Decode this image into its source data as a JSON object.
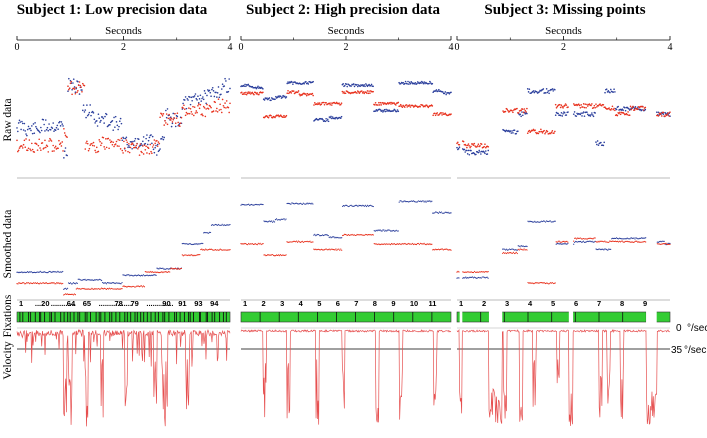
{
  "chart_data": {
    "type": "scatter",
    "shared": {
      "xlabel": "Seconds",
      "xlim": [
        0,
        4
      ],
      "x_ticks": [
        "0",
        "2",
        "4"
      ],
      "row_labels": [
        "Raw data",
        "Smoothed data",
        "Fixations",
        "Velocity"
      ],
      "velocity_reference_lines": [
        {
          "value": "0",
          "unit": "°/sec"
        },
        {
          "value": "35",
          "unit": "°/sec"
        }
      ],
      "series_colors": {
        "horizontal": "#2b3f9c",
        "vertical": "#e8321e",
        "fixation": "#33cc33",
        "velocity": "#e65050"
      }
    },
    "panels": [
      {
        "title": "Subject 1: Low precision data",
        "fixation_labels": [
          "1",
          "...20",
          "............",
          "64",
          "65",
          "................",
          "78",
          "79",
          ".............",
          "90",
          "91",
          "93",
          "94"
        ],
        "raw": {
          "horizontal": [
            [
              0.0,
              0.55
            ],
            [
              0.3,
              0.58
            ],
            [
              0.6,
              0.55
            ],
            [
              0.85,
              0.55
            ],
            [
              0.9,
              0.78
            ],
            [
              1.0,
              0.2
            ],
            [
              1.15,
              0.22
            ],
            [
              1.3,
              0.42
            ],
            [
              1.6,
              0.5
            ],
            [
              1.9,
              0.53
            ],
            [
              2.05,
              0.7
            ],
            [
              2.5,
              0.68
            ],
            [
              2.6,
              0.75
            ],
            [
              2.75,
              0.7
            ],
            [
              2.8,
              0.45
            ],
            [
              3.0,
              0.5
            ],
            [
              3.2,
              0.35
            ],
            [
              3.4,
              0.3
            ],
            [
              3.6,
              0.3
            ],
            [
              3.7,
              0.25
            ],
            [
              4.0,
              0.2
            ]
          ],
          "vertical": [
            [
              0.0,
              0.72
            ],
            [
              0.4,
              0.72
            ],
            [
              0.85,
              0.72
            ],
            [
              0.9,
              0.6
            ],
            [
              1.0,
              0.22
            ],
            [
              1.25,
              0.22
            ],
            [
              1.3,
              0.72
            ],
            [
              1.9,
              0.7
            ],
            [
              2.05,
              0.73
            ],
            [
              2.5,
              0.76
            ],
            [
              2.6,
              0.73
            ],
            [
              2.75,
              0.5
            ],
            [
              3.0,
              0.5
            ],
            [
              3.2,
              0.42
            ],
            [
              3.4,
              0.42
            ],
            [
              3.7,
              0.38
            ],
            [
              4.0,
              0.38
            ]
          ]
        },
        "smoothed": {
          "horizontal": [
            [
              0.0,
              0.75
            ],
            [
              0.85,
              0.75
            ],
            [
              0.9,
              0.9
            ],
            [
              1.0,
              0.85
            ],
            [
              1.3,
              0.82
            ],
            [
              1.9,
              0.85
            ],
            [
              2.05,
              0.78
            ],
            [
              2.5,
              0.78
            ],
            [
              2.75,
              0.72
            ],
            [
              3.0,
              0.72
            ],
            [
              3.2,
              0.5
            ],
            [
              3.4,
              0.5
            ],
            [
              3.6,
              0.4
            ],
            [
              3.7,
              0.33
            ],
            [
              4.0,
              0.33
            ]
          ],
          "vertical": [
            [
              0.0,
              0.85
            ],
            [
              0.85,
              0.85
            ],
            [
              0.9,
              0.95
            ],
            [
              1.3,
              0.9
            ],
            [
              1.9,
              0.9
            ],
            [
              2.05,
              0.88
            ],
            [
              2.75,
              0.75
            ],
            [
              3.0,
              0.72
            ],
            [
              3.2,
              0.6
            ],
            [
              3.7,
              0.55
            ],
            [
              4.0,
              0.55
            ]
          ]
        }
      },
      {
        "title": "Subject 2: High precision data",
        "fixation_labels": [
          "1",
          "2",
          "3",
          "4",
          "5",
          "6",
          "7",
          "8",
          "9",
          "10",
          "11"
        ],
        "raw": {
          "horizontal": [
            [
              0.0,
              0.2
            ],
            [
              0.4,
              0.22
            ],
            [
              0.45,
              0.32
            ],
            [
              0.85,
              0.3
            ],
            [
              0.9,
              0.18
            ],
            [
              1.3,
              0.18
            ],
            [
              1.45,
              0.5
            ],
            [
              1.9,
              0.48
            ],
            [
              1.95,
              0.2
            ],
            [
              2.45,
              0.2
            ],
            [
              2.6,
              0.42
            ],
            [
              2.95,
              0.42
            ],
            [
              3.05,
              0.18
            ],
            [
              3.6,
              0.18
            ],
            [
              3.7,
              0.25
            ],
            [
              4.0,
              0.27
            ]
          ],
          "vertical": [
            [
              0.0,
              0.27
            ],
            [
              0.4,
              0.27
            ],
            [
              0.45,
              0.47
            ],
            [
              0.85,
              0.47
            ],
            [
              0.9,
              0.26
            ],
            [
              1.3,
              0.28
            ],
            [
              1.45,
              0.36
            ],
            [
              1.9,
              0.36
            ],
            [
              1.95,
              0.26
            ],
            [
              2.45,
              0.26
            ],
            [
              2.6,
              0.36
            ],
            [
              2.95,
              0.36
            ],
            [
              3.05,
              0.38
            ],
            [
              3.6,
              0.38
            ],
            [
              3.7,
              0.45
            ],
            [
              4.0,
              0.45
            ]
          ]
        },
        "smoothed": {
          "horizontal": [
            [
              0.0,
              0.15
            ],
            [
              0.4,
              0.15
            ],
            [
              0.45,
              0.3
            ],
            [
              0.85,
              0.28
            ],
            [
              0.9,
              0.14
            ],
            [
              1.3,
              0.14
            ],
            [
              1.45,
              0.42
            ],
            [
              1.9,
              0.44
            ],
            [
              1.95,
              0.16
            ],
            [
              2.45,
              0.16
            ],
            [
              2.6,
              0.38
            ],
            [
              2.95,
              0.38
            ],
            [
              3.05,
              0.12
            ],
            [
              3.6,
              0.12
            ],
            [
              3.7,
              0.22
            ],
            [
              4.0,
              0.22
            ]
          ],
          "vertical": [
            [
              0.0,
              0.5
            ],
            [
              0.4,
              0.5
            ],
            [
              0.45,
              0.6
            ],
            [
              0.85,
              0.6
            ],
            [
              0.9,
              0.48
            ],
            [
              1.3,
              0.48
            ],
            [
              1.45,
              0.55
            ],
            [
              1.9,
              0.55
            ],
            [
              1.95,
              0.42
            ],
            [
              2.45,
              0.42
            ],
            [
              2.6,
              0.5
            ],
            [
              2.95,
              0.5
            ],
            [
              3.05,
              0.5
            ],
            [
              3.6,
              0.5
            ],
            [
              3.7,
              0.55
            ],
            [
              4.0,
              0.55
            ]
          ]
        }
      },
      {
        "title": "Subject 3: Missing points",
        "fixation_labels": [
          "1",
          "2",
          "3",
          "4",
          "5",
          "6",
          "7",
          "8",
          "9"
        ],
        "raw": {
          "horizontal": [
            [
              0.0,
              0.75
            ],
            [
              0.3,
              0.78
            ],
            [
              0.9,
              0.6
            ],
            [
              1.1,
              0.6
            ],
            [
              1.2,
              0.45
            ],
            [
              1.45,
              0.25
            ],
            [
              1.8,
              0.25
            ],
            [
              1.9,
              0.45
            ],
            [
              2.5,
              0.45
            ],
            [
              2.7,
              0.7
            ],
            [
              2.85,
              0.25
            ],
            [
              3.1,
              0.4
            ],
            [
              3.4,
              0.4
            ],
            [
              3.8,
              0.45
            ],
            [
              4.0,
              0.45
            ]
          ],
          "vertical": [
            [
              0.0,
              0.7
            ],
            [
              0.3,
              0.72
            ],
            [
              0.9,
              0.42
            ],
            [
              1.1,
              0.42
            ],
            [
              1.2,
              0.42
            ],
            [
              1.45,
              0.6
            ],
            [
              1.8,
              0.6
            ],
            [
              1.9,
              0.38
            ],
            [
              2.5,
              0.38
            ],
            [
              2.7,
              0.38
            ],
            [
              2.85,
              0.4
            ],
            [
              3.1,
              0.45
            ],
            [
              3.4,
              0.4
            ],
            [
              3.8,
              0.45
            ],
            [
              4.0,
              0.45
            ]
          ]
        },
        "smoothed": {
          "horizontal": [
            [
              0.0,
              0.8
            ],
            [
              0.3,
              0.8
            ],
            [
              0.9,
              0.55
            ],
            [
              1.1,
              0.55
            ],
            [
              1.2,
              0.52
            ],
            [
              1.45,
              0.3
            ],
            [
              1.8,
              0.3
            ],
            [
              1.9,
              0.5
            ],
            [
              2.5,
              0.48
            ],
            [
              2.7,
              0.55
            ],
            [
              3.1,
              0.45
            ],
            [
              3.4,
              0.45
            ],
            [
              3.8,
              0.48
            ],
            [
              4.0,
              0.5
            ]
          ],
          "vertical": [
            [
              0.0,
              0.75
            ],
            [
              0.3,
              0.75
            ],
            [
              0.9,
              0.58
            ],
            [
              1.1,
              0.58
            ],
            [
              1.2,
              0.55
            ],
            [
              1.45,
              0.85
            ],
            [
              1.8,
              0.85
            ],
            [
              1.9,
              0.48
            ],
            [
              2.5,
              0.45
            ],
            [
              2.7,
              0.48
            ],
            [
              3.1,
              0.48
            ],
            [
              3.4,
              0.48
            ],
            [
              3.8,
              0.5
            ],
            [
              4.0,
              0.5
            ]
          ]
        }
      }
    ]
  }
}
